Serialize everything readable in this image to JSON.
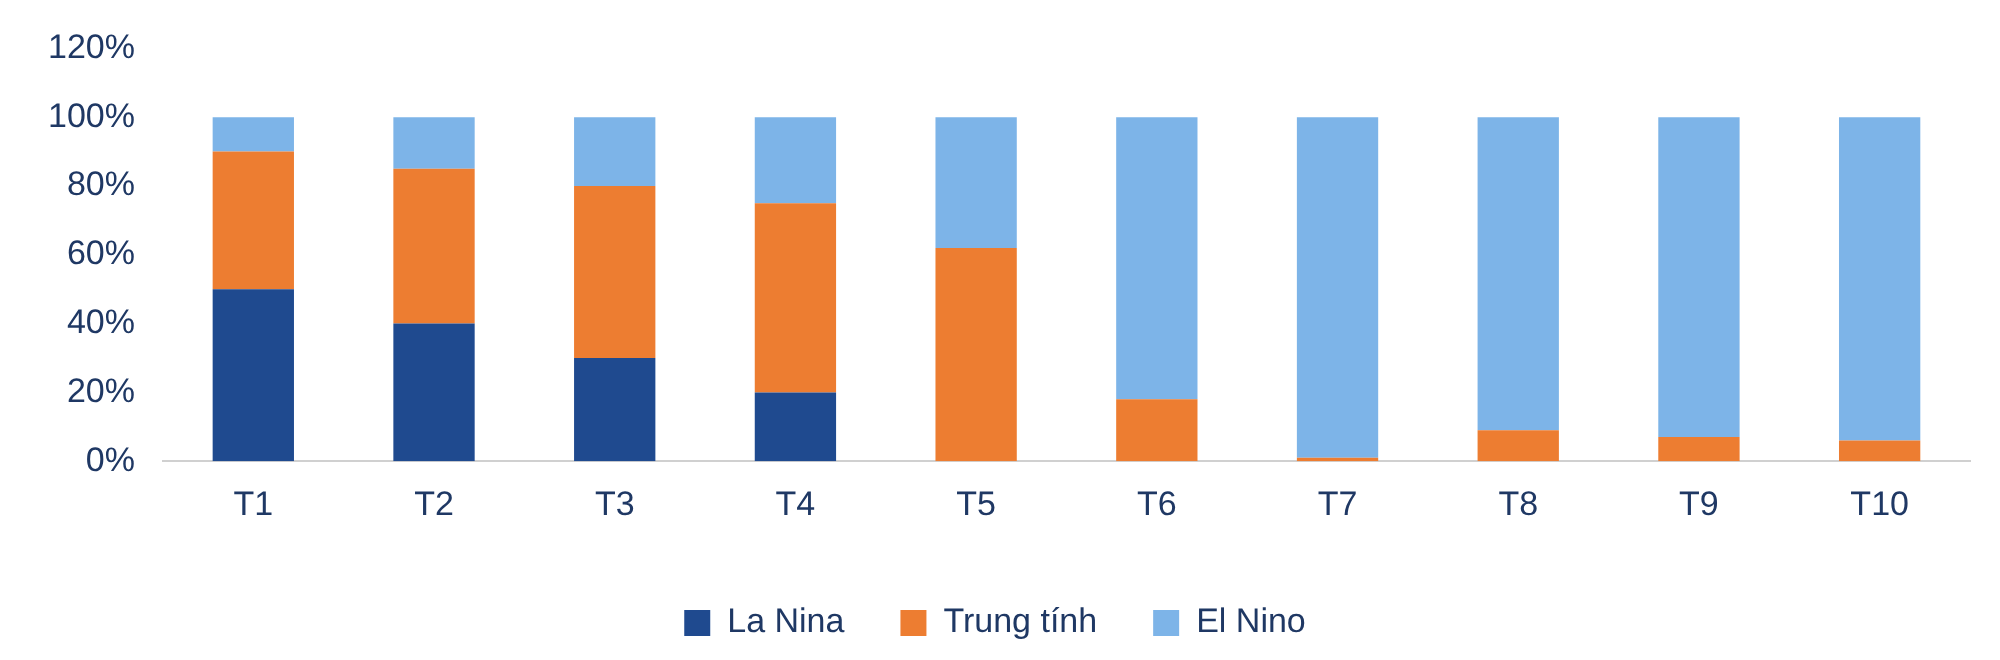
{
  "chart_data": {
    "type": "bar",
    "stacked": true,
    "categories": [
      "T1",
      "T2",
      "T3",
      "T4",
      "T5",
      "T6",
      "T7",
      "T8",
      "T9",
      "T10"
    ],
    "series": [
      {
        "name": "La Nina",
        "color": "#1f4a8f",
        "values": [
          50,
          40,
          30,
          20,
          0,
          0,
          0,
          0,
          0,
          0
        ]
      },
      {
        "name": "Trung tính",
        "color": "#ed7d31",
        "values": [
          40,
          45,
          50,
          55,
          62,
          18,
          1,
          9,
          7,
          6
        ]
      },
      {
        "name": "El Nino",
        "color": "#7db4e8",
        "values": [
          10,
          15,
          20,
          25,
          38,
          82,
          99,
          91,
          93,
          94
        ]
      }
    ],
    "ylim": [
      0,
      120
    ],
    "yticks": [
      {
        "value": 0,
        "label": "0%"
      },
      {
        "value": 20,
        "label": "20%"
      },
      {
        "value": 40,
        "label": "40%"
      },
      {
        "value": 60,
        "label": "60%"
      },
      {
        "value": 80,
        "label": "80%"
      },
      {
        "value": 100,
        "label": "100%"
      },
      {
        "value": 120,
        "label": "120%"
      }
    ],
    "grid": false,
    "legend": "bottom"
  }
}
